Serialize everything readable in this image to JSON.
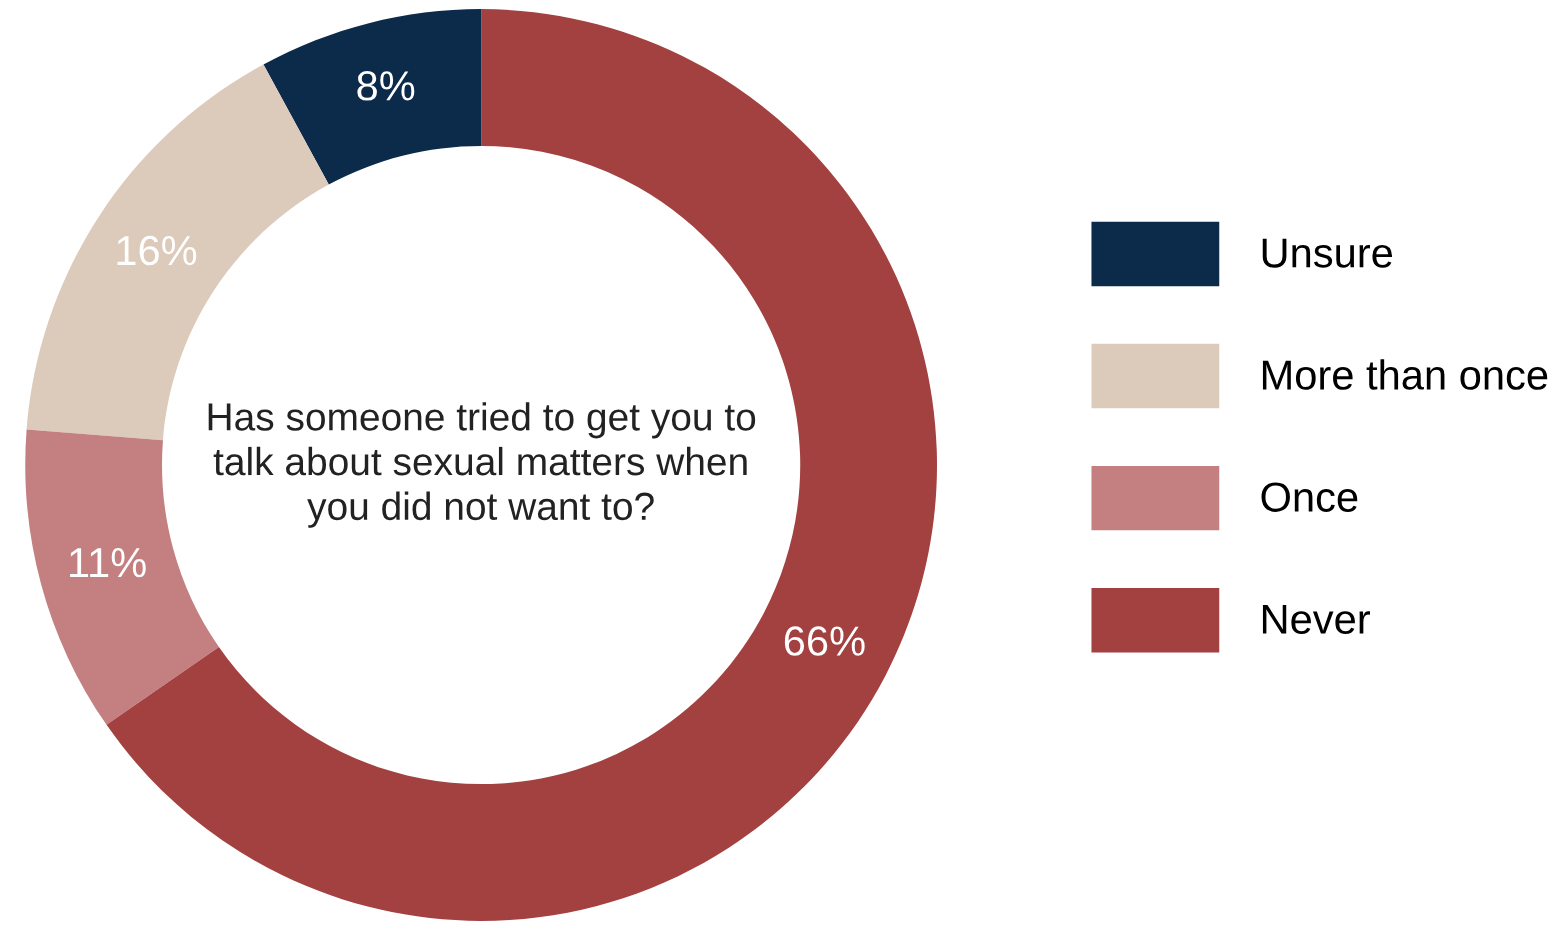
{
  "chart_data": {
    "type": "donut",
    "title": "Has someone tried to get you to talk about sexual matters when you did not want to?",
    "categories": [
      "Unsure",
      "More than once",
      "Once",
      "Never"
    ],
    "values": [
      8,
      16,
      11,
      66
    ],
    "colors": [
      "#0c2a4a",
      "#dccabb",
      "#c48080",
      "#a34040"
    ],
    "value_labels": [
      "8%",
      "16%",
      "11%",
      "66%"
    ],
    "legend": "right"
  }
}
